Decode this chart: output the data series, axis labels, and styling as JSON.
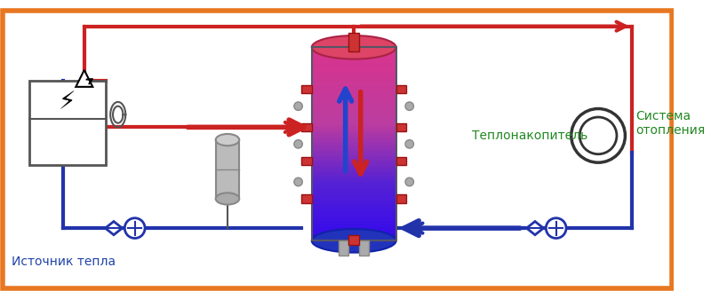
{
  "bg_color": "#ffffff",
  "border_color": "#e87722",
  "red_pipe": "#cc2222",
  "blue_pipe": "#2233aa",
  "tank_top_color": "#cc4466",
  "tank_mid_color": "#993377",
  "tank_bot_color": "#3333aa",
  "arrow_red": "#dd2222",
  "arrow_blue": "#2233bb",
  "text_color_blue": "#2244aa",
  "label_source": "Источник тепла",
  "label_tank": "Теплонакопитель",
  "label_system": "Система\nотопления",
  "pipe_lw": 3,
  "border_lw": 4
}
